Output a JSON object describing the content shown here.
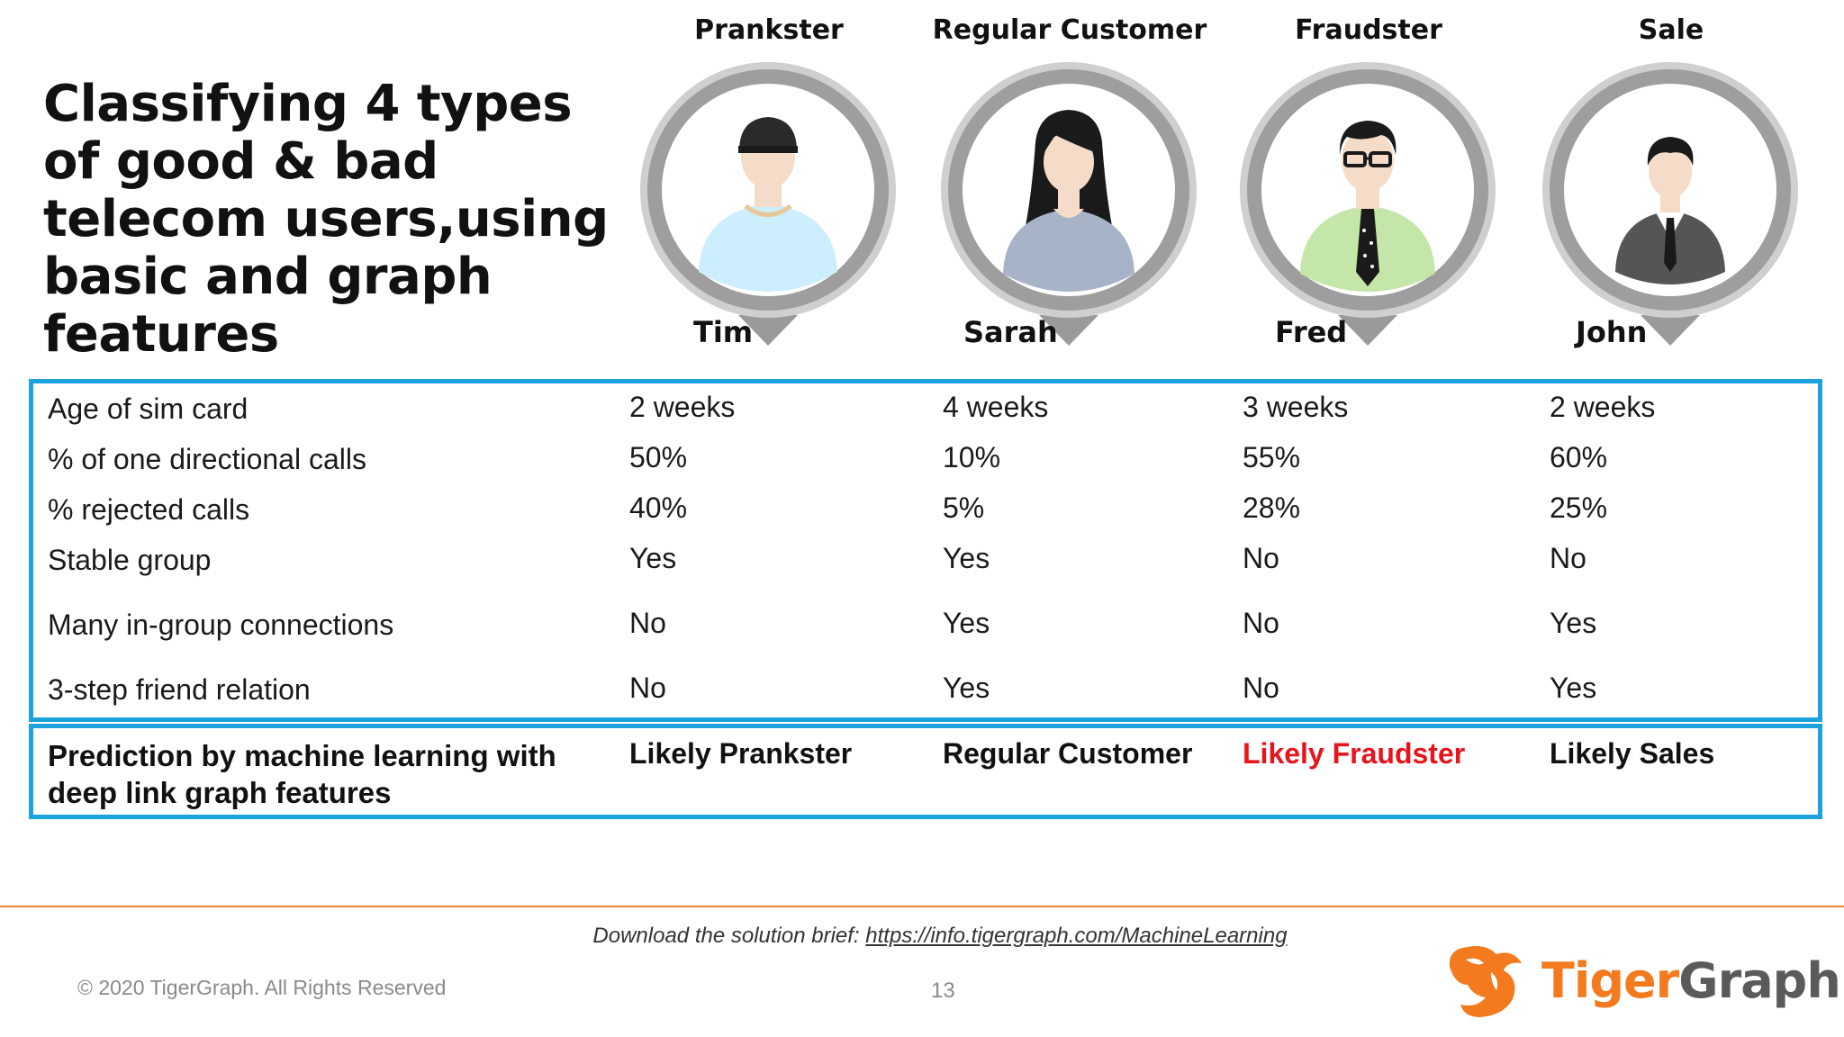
{
  "title": "Classifying 4 types of good & bad telecom users,using basic and graph features",
  "personas": [
    {
      "type": "Prankster",
      "name": "Tim",
      "icon": "teen-cap-avatar-icon",
      "shirt_color": "#cdeefe"
    },
    {
      "type": "Regular Customer",
      "name": "Sarah",
      "icon": "woman-avatar-icon",
      "shirt_color": "#a7b3c7"
    },
    {
      "type": "Fraudster",
      "name": "Fred",
      "icon": "man-glasses-tie-avatar-icon",
      "shirt_color": "#c4e6a8"
    },
    {
      "type": "Sale",
      "name": "John",
      "icon": "businessman-avatar-icon",
      "shirt_color": "#555555"
    }
  ],
  "features": [
    {
      "label": "Age of sim card",
      "values": [
        "2 weeks",
        "4 weeks",
        "3 weeks",
        "2  weeks"
      ]
    },
    {
      "label": "% of one directional calls",
      "values": [
        "50%",
        "10%",
        "55%",
        "60%"
      ]
    },
    {
      "label": "% rejected calls",
      "values": [
        "40%",
        "5%",
        "28%",
        "25%"
      ]
    },
    {
      "label": "Stable group",
      "values": [
        "Yes",
        "Yes",
        "No",
        "No"
      ]
    },
    {
      "label": "Many in-group connections",
      "values": [
        "No",
        "Yes",
        "No",
        "Yes"
      ]
    },
    {
      "label": "3-step friend relation",
      "values": [
        "No",
        "Yes",
        "No",
        "Yes"
      ]
    }
  ],
  "prediction": {
    "label": "Prediction by machine learning with deep link graph features",
    "values": [
      "Likely Prankster",
      "Regular Customer",
      "Likely Fraudster",
      "Likely Sales"
    ],
    "highlight_color": "#e8141c"
  },
  "colors": {
    "border_accent": "#1ca3de",
    "footer_line": "#e8863a",
    "logo_orange": "#f47a20",
    "logo_gray": "#5a5a5a"
  },
  "footer": {
    "download_text": "Download the solution brief:",
    "download_link": "https://info.tigergraph.com/MachineLearning",
    "copyright": "© 2020 TigerGraph. All Rights Reserved",
    "page_number": "13",
    "logo_text_part1": "Tiger",
    "logo_text_part2": "Graph"
  }
}
